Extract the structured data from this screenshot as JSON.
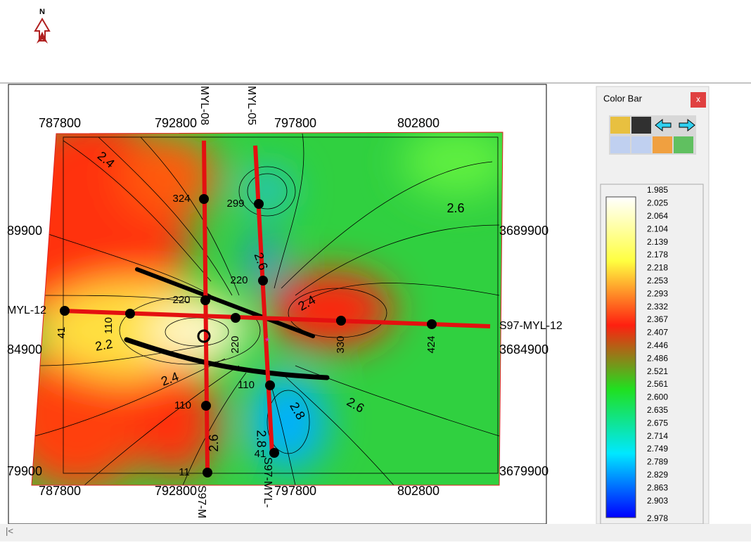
{
  "north_arrow": {
    "label": "N"
  },
  "map": {
    "x_labels_top": [
      "787800",
      "792800",
      "797800",
      "802800"
    ],
    "x_labels_bottom": [
      "787800",
      "792800",
      "797800",
      "802800"
    ],
    "y_labels_left": [
      "89900",
      "84900",
      "79900"
    ],
    "y_labels_right": [
      "3689900",
      "3684900",
      "3679900"
    ],
    "well_labels": [
      "MYL-08",
      "MYL-05",
      "MYL-12",
      "S97-MYL-12",
      "S97-M",
      "S97-MYL-"
    ],
    "point_labels": [
      "324",
      "299",
      "220",
      "220",
      "220",
      "110",
      "41",
      "330",
      "424",
      "110",
      "110",
      "41",
      "11"
    ],
    "contour_labels": [
      "2.4",
      "2.6",
      "2.6",
      "2.4",
      "2.2",
      "2.4",
      "2.6",
      "2.8",
      "2.6",
      "2.8"
    ]
  },
  "color_bar": {
    "title": "Color Bar",
    "close": "x",
    "values": [
      "1.985",
      "2.025",
      "2.064",
      "2.104",
      "2.139",
      "2.178",
      "2.218",
      "2.253",
      "2.293",
      "2.332",
      "2.367",
      "2.407",
      "2.446",
      "2.486",
      "2.521",
      "2.561",
      "2.600",
      "2.635",
      "2.675",
      "2.714",
      "2.749",
      "2.789",
      "2.829",
      "2.863",
      "2.903",
      "2.978"
    ]
  }
}
